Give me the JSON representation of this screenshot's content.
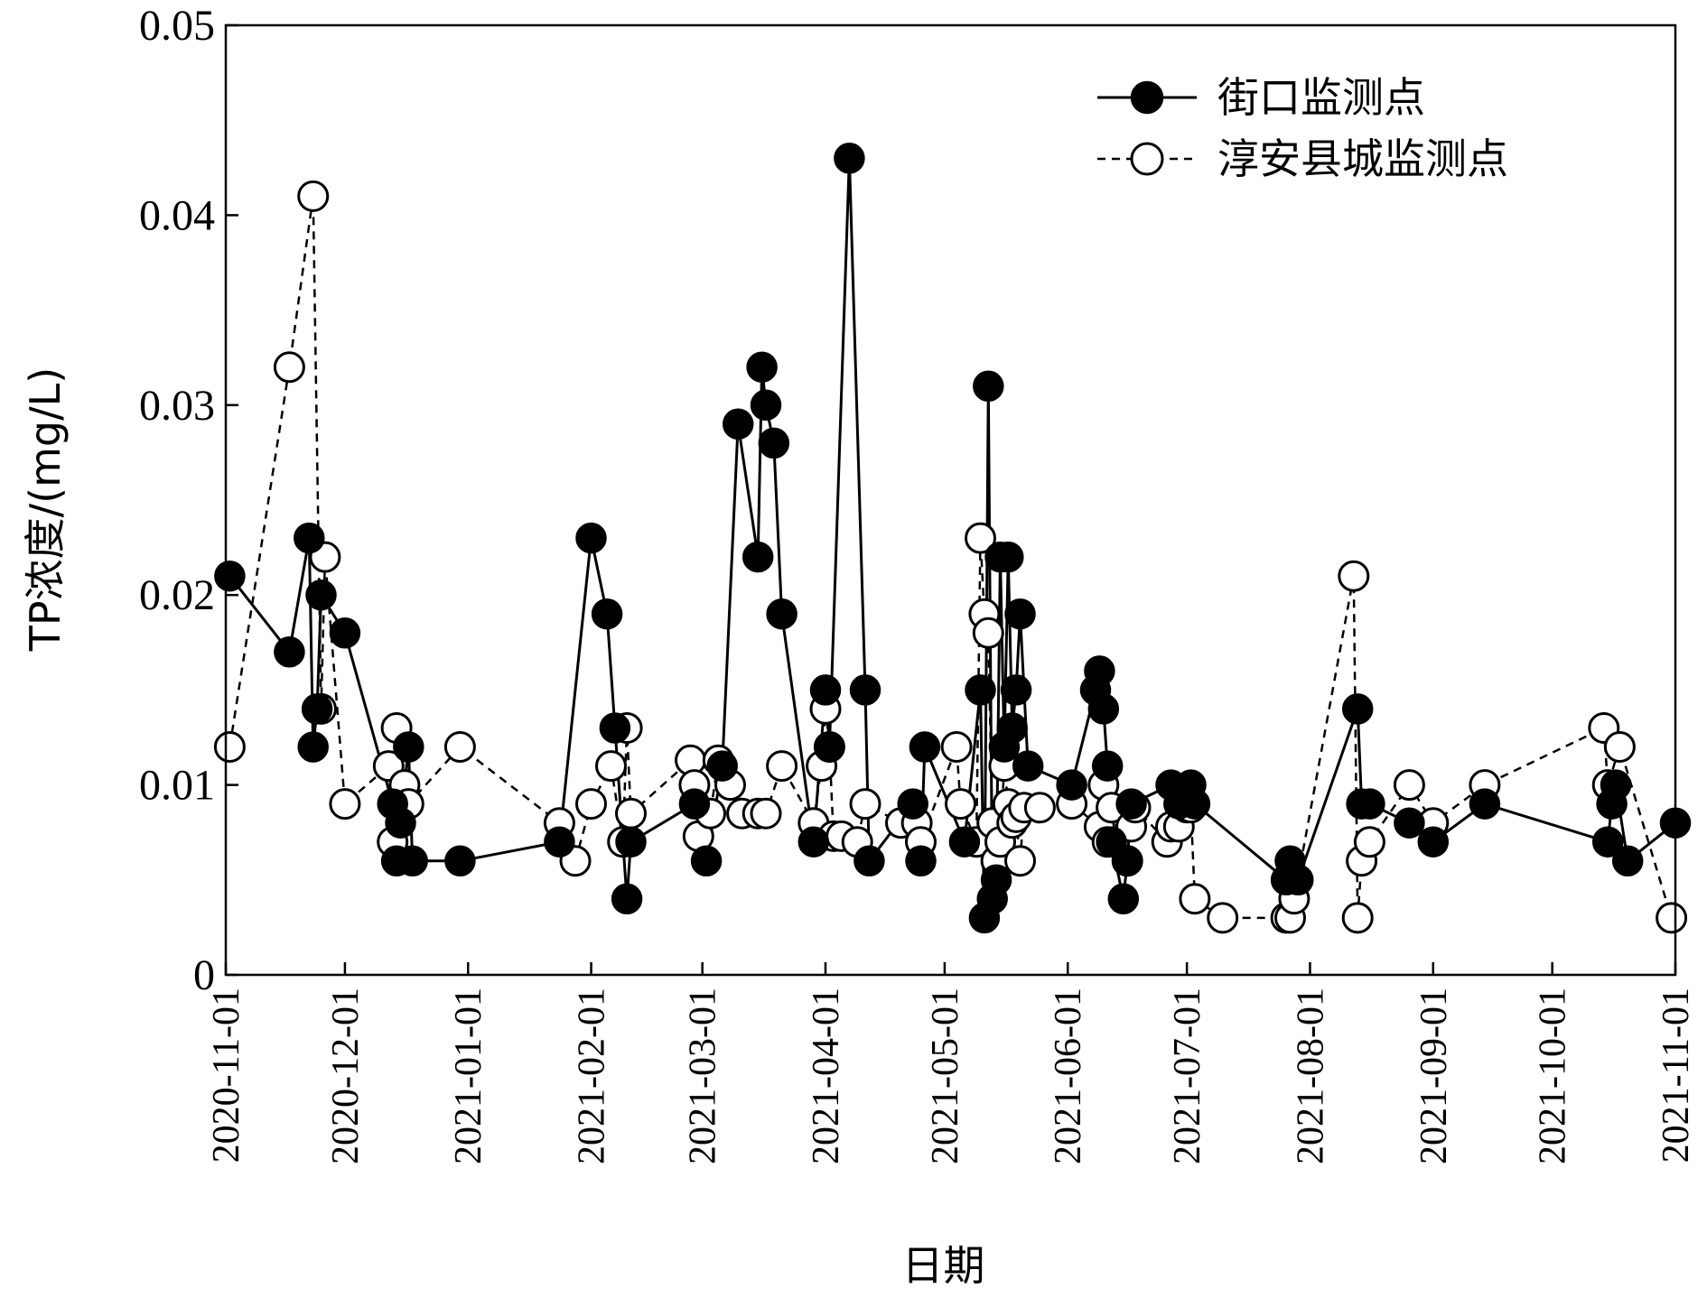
{
  "chart_data": {
    "type": "line",
    "xlabel": "日期",
    "ylabel": "TP浓度/(mg/L)",
    "xlim": [
      "2020-11-01",
      "2021-11-01"
    ],
    "ylim": [
      0,
      0.05
    ],
    "yticks": [
      0,
      0.01,
      0.02,
      0.03,
      0.04,
      0.05
    ],
    "ytick_labels": [
      "0",
      "0.01",
      "0.02",
      "0.03",
      "0.04",
      "0.05"
    ],
    "xticks": [
      "2020-11-01",
      "2020-12-01",
      "2021-01-01",
      "2021-02-01",
      "2021-03-01",
      "2021-04-01",
      "2021-05-01",
      "2021-06-01",
      "2021-07-01",
      "2021-08-01",
      "2021-09-01",
      "2021-10-01",
      "2021-11-01"
    ],
    "legend": {
      "placement": "top-right"
    },
    "series": [
      {
        "name": "街口监测点",
        "style": "solid-filled",
        "x": [
          "2020-11-02",
          "2020-11-17",
          "2020-11-22",
          "2020-11-23",
          "2020-11-24",
          "2020-11-25",
          "2020-12-01",
          "2020-12-13",
          "2020-12-14",
          "2020-12-15",
          "2020-12-17",
          "2020-12-18",
          "2020-12-30",
          "2021-01-24",
          "2021-02-01",
          "2021-02-05",
          "2021-02-07",
          "2021-02-10",
          "2021-02-11",
          "2021-02-27",
          "2021-03-02",
          "2021-03-06",
          "2021-03-10",
          "2021-03-15",
          "2021-03-16",
          "2021-03-17",
          "2021-03-19",
          "2021-03-21",
          "2021-03-29",
          "2021-04-01",
          "2021-04-02",
          "2021-04-07",
          "2021-04-11",
          "2021-04-12",
          "2021-04-23",
          "2021-04-25",
          "2021-04-26",
          "2021-05-06",
          "2021-05-10",
          "2021-05-11",
          "2021-05-12",
          "2021-05-13",
          "2021-05-14",
          "2021-05-15",
          "2021-05-16",
          "2021-05-17",
          "2021-05-18",
          "2021-05-19",
          "2021-05-20",
          "2021-05-22",
          "2021-06-02",
          "2021-06-08",
          "2021-06-09",
          "2021-06-10",
          "2021-06-11",
          "2021-06-12",
          "2021-06-15",
          "2021-06-16",
          "2021-06-17",
          "2021-06-27",
          "2021-06-29",
          "2021-07-02",
          "2021-07-03",
          "2021-07-26",
          "2021-07-27",
          "2021-07-29",
          "2021-08-13",
          "2021-08-14",
          "2021-08-16",
          "2021-08-26",
          "2021-09-01",
          "2021-09-14",
          "2021-10-15",
          "2021-10-16",
          "2021-10-17",
          "2021-10-20",
          "2021-11-01"
        ],
        "values": [
          0.021,
          0.017,
          0.023,
          0.012,
          0.014,
          0.02,
          0.018,
          0.009,
          0.006,
          0.008,
          0.012,
          0.006,
          0.006,
          0.007,
          0.023,
          0.019,
          0.013,
          0.004,
          0.007,
          0.009,
          0.006,
          0.011,
          0.029,
          0.022,
          0.032,
          0.03,
          0.028,
          0.019,
          0.007,
          0.015,
          0.012,
          0.043,
          0.015,
          0.006,
          0.009,
          0.006,
          0.012,
          0.007,
          0.015,
          0.003,
          0.031,
          0.004,
          0.005,
          0.022,
          0.012,
          0.022,
          0.013,
          0.015,
          0.019,
          0.011,
          0.01,
          0.015,
          0.016,
          0.014,
          0.011,
          0.007,
          0.004,
          0.006,
          0.009,
          0.01,
          0.009,
          0.01,
          0.009,
          0.005,
          0.006,
          0.005,
          0.014,
          0.009,
          0.009,
          0.008,
          0.007,
          0.009,
          0.007,
          0.009,
          0.01,
          0.006,
          0.008
        ]
      },
      {
        "name": "淳安县城监测点",
        "style": "dashed-open",
        "x": [
          "2020-11-02",
          "2020-11-17",
          "2020-11-23",
          "2020-11-25",
          "2020-11-26",
          "2020-12-01",
          "2020-12-12",
          "2020-12-13",
          "2020-12-14",
          "2020-12-16",
          "2020-12-17",
          "2020-12-30",
          "2021-01-24",
          "2021-01-28",
          "2021-02-01",
          "2021-02-06",
          "2021-02-09",
          "2021-02-10",
          "2021-02-11",
          "2021-02-26",
          "2021-02-27",
          "2021-02-28",
          "2021-03-03",
          "2021-03-05",
          "2021-03-08",
          "2021-03-11",
          "2021-03-15",
          "2021-03-17",
          "2021-03-21",
          "2021-03-29",
          "2021-03-31",
          "2021-04-01",
          "2021-04-02",
          "2021-04-03",
          "2021-04-05",
          "2021-04-09",
          "2021-04-11",
          "2021-04-20",
          "2021-04-24",
          "2021-04-25",
          "2021-05-04",
          "2021-05-05",
          "2021-05-09",
          "2021-05-10",
          "2021-05-11",
          "2021-05-12",
          "2021-05-13",
          "2021-05-14",
          "2021-05-15",
          "2021-05-16",
          "2021-05-17",
          "2021-05-18",
          "2021-05-19",
          "2021-05-20",
          "2021-05-21",
          "2021-05-25",
          "2021-06-02",
          "2021-06-09",
          "2021-06-10",
          "2021-06-11",
          "2021-06-12",
          "2021-06-16",
          "2021-06-17",
          "2021-06-18",
          "2021-06-26",
          "2021-06-27",
          "2021-06-29",
          "2021-07-01",
          "2021-07-02",
          "2021-07-03",
          "2021-07-10",
          "2021-07-26",
          "2021-07-27",
          "2021-07-28",
          "2021-08-12",
          "2021-08-13",
          "2021-08-14",
          "2021-08-16",
          "2021-08-26",
          "2021-09-01",
          "2021-09-14",
          "2021-10-14",
          "2021-10-15",
          "2021-10-18",
          "2021-10-31"
        ],
        "values": [
          0.012,
          0.032,
          0.041,
          0.014,
          0.022,
          0.009,
          0.011,
          0.007,
          0.013,
          0.01,
          0.009,
          0.012,
          0.008,
          0.006,
          0.009,
          0.011,
          0.007,
          0.013,
          0.0085,
          0.0113,
          0.01,
          0.0073,
          0.0085,
          0.0113,
          0.01,
          0.0085,
          0.0085,
          0.0085,
          0.011,
          0.008,
          0.011,
          0.014,
          0.012,
          0.0073,
          0.0073,
          0.007,
          0.009,
          0.008,
          0.008,
          0.007,
          0.012,
          0.009,
          0.007,
          0.023,
          0.019,
          0.018,
          0.008,
          0.006,
          0.007,
          0.011,
          0.009,
          0.008,
          0.0083,
          0.006,
          0.0088,
          0.0088,
          0.009,
          0.0078,
          0.01,
          0.007,
          0.0088,
          0.006,
          0.0078,
          0.0088,
          0.007,
          0.0078,
          0.0078,
          0.0088,
          0.0088,
          0.004,
          0.003,
          0.003,
          0.003,
          0.004,
          0.021,
          0.003,
          0.006,
          0.007,
          0.01,
          0.008,
          0.01,
          0.013,
          0.01,
          0.012,
          0.003
        ]
      }
    ]
  }
}
